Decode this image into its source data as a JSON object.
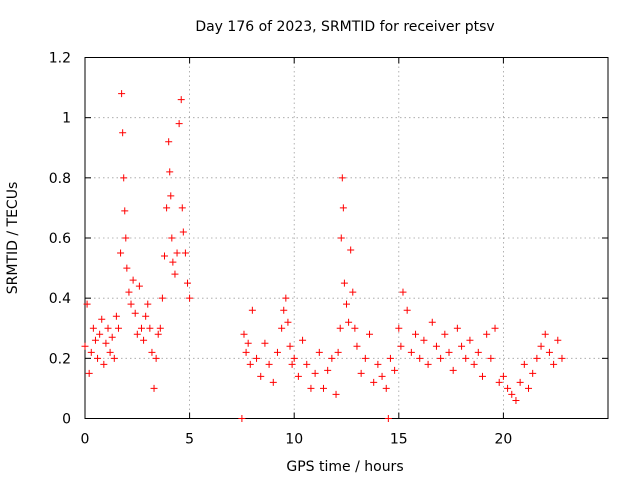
{
  "chart_data": {
    "type": "scatter",
    "title": "Day 176 of 2023, SRMTID for receiver ptsv",
    "xlabel": "GPS time / hours",
    "ylabel": "SRMTID / TECUs",
    "xlim": [
      0,
      25
    ],
    "ylim": [
      0,
      1.2
    ],
    "x_ticks": [
      0,
      5,
      10,
      15,
      20
    ],
    "x_tick_labels": [
      "0",
      "5",
      "10",
      "15",
      "20"
    ],
    "y_ticks": [
      0,
      0.2,
      0.4,
      0.6,
      0.8,
      1.0,
      1.2
    ],
    "y_tick_labels": [
      "0",
      "0.2",
      "0.4",
      "0.6",
      "0.8",
      "1",
      "1.2"
    ],
    "grid": true,
    "marker": "plus",
    "marker_color": "#ff0000",
    "series": [
      {
        "name": "ptsv",
        "x": [
          0.0,
          0.1,
          0.2,
          0.3,
          0.4,
          0.5,
          0.6,
          0.7,
          0.8,
          0.9,
          1.0,
          1.1,
          1.2,
          1.3,
          1.4,
          1.5,
          1.6,
          1.7,
          1.75,
          1.8,
          1.85,
          1.9,
          1.95,
          2.0,
          2.1,
          2.2,
          2.3,
          2.4,
          2.5,
          2.6,
          2.7,
          2.8,
          2.9,
          3.0,
          3.1,
          3.2,
          3.3,
          3.4,
          3.5,
          3.6,
          3.7,
          3.8,
          3.9,
          4.0,
          4.05,
          4.1,
          4.15,
          4.2,
          4.3,
          4.4,
          4.5,
          4.6,
          4.65,
          4.7,
          4.8,
          4.9,
          5.0,
          7.5,
          7.6,
          7.7,
          7.8,
          7.9,
          8.0,
          8.2,
          8.4,
          8.6,
          8.8,
          9.0,
          9.2,
          9.4,
          9.5,
          9.6,
          9.7,
          9.8,
          9.9,
          10.0,
          10.2,
          10.4,
          10.6,
          10.8,
          11.0,
          11.2,
          11.4,
          11.6,
          11.8,
          12.0,
          12.1,
          12.2,
          12.25,
          12.3,
          12.35,
          12.4,
          12.5,
          12.6,
          12.7,
          12.8,
          12.9,
          13.0,
          13.2,
          13.4,
          13.6,
          13.8,
          14.0,
          14.2,
          14.4,
          14.5,
          14.6,
          14.8,
          15.0,
          15.1,
          15.2,
          15.4,
          15.6,
          15.8,
          16.0,
          16.2,
          16.4,
          16.6,
          16.8,
          17.0,
          17.2,
          17.4,
          17.6,
          17.8,
          18.0,
          18.2,
          18.4,
          18.6,
          18.8,
          19.0,
          19.2,
          19.4,
          19.6,
          19.8,
          20.0,
          20.2,
          20.4,
          20.6,
          20.8,
          21.0,
          21.2,
          21.4,
          21.6,
          21.8,
          22.0,
          22.2,
          22.4,
          22.6,
          22.8
        ],
        "y": [
          0.24,
          0.38,
          0.15,
          0.22,
          0.3,
          0.26,
          0.2,
          0.28,
          0.33,
          0.18,
          0.25,
          0.3,
          0.22,
          0.27,
          0.2,
          0.34,
          0.3,
          0.55,
          1.08,
          0.95,
          0.8,
          0.69,
          0.6,
          0.5,
          0.42,
          0.38,
          0.46,
          0.35,
          0.28,
          0.44,
          0.3,
          0.26,
          0.34,
          0.38,
          0.3,
          0.22,
          0.1,
          0.2,
          0.28,
          0.3,
          0.4,
          0.54,
          0.7,
          0.92,
          0.82,
          0.74,
          0.6,
          0.52,
          0.48,
          0.55,
          0.98,
          1.06,
          0.7,
          0.62,
          0.55,
          0.45,
          0.4,
          0.0,
          0.28,
          0.22,
          0.25,
          0.18,
          0.36,
          0.2,
          0.14,
          0.25,
          0.18,
          0.12,
          0.22,
          0.3,
          0.36,
          0.4,
          0.32,
          0.24,
          0.18,
          0.2,
          0.14,
          0.26,
          0.18,
          0.1,
          0.15,
          0.22,
          0.1,
          0.16,
          0.2,
          0.08,
          0.22,
          0.3,
          0.6,
          0.8,
          0.7,
          0.45,
          0.38,
          0.32,
          0.56,
          0.42,
          0.3,
          0.24,
          0.15,
          0.2,
          0.28,
          0.12,
          0.18,
          0.14,
          0.1,
          0.0,
          0.2,
          0.16,
          0.3,
          0.24,
          0.42,
          0.36,
          0.22,
          0.28,
          0.2,
          0.26,
          0.18,
          0.32,
          0.24,
          0.2,
          0.28,
          0.22,
          0.16,
          0.3,
          0.24,
          0.2,
          0.26,
          0.18,
          0.22,
          0.14,
          0.28,
          0.2,
          0.3,
          0.12,
          0.14,
          0.1,
          0.08,
          0.06,
          0.12,
          0.18,
          0.1,
          0.15,
          0.2,
          0.24,
          0.28,
          0.22,
          0.18,
          0.26,
          0.2
        ]
      }
    ]
  }
}
